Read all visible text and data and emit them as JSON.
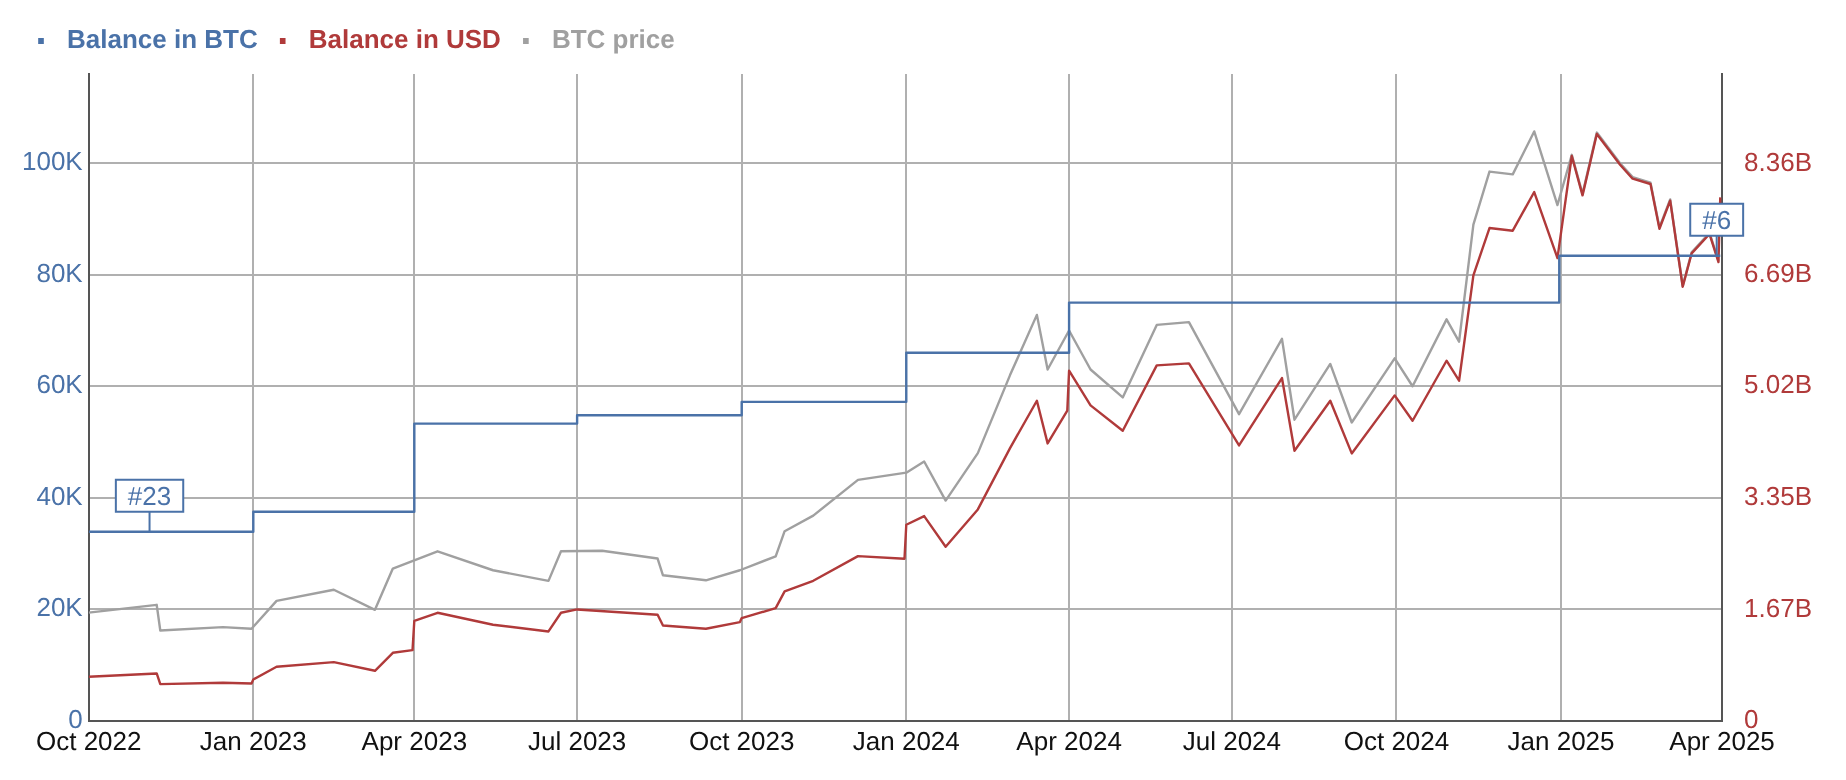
{
  "chart_data": {
    "type": "line",
    "series": [
      {
        "name": "Balance in BTC",
        "type": "step",
        "color": "#4a72a8",
        "x": [
          "2022-10-01",
          "2023-01-01",
          "2023-04-01",
          "2023-07-01",
          "2023-10-01",
          "2024-01-01",
          "2024-04-01",
          "2024-12-31",
          "2025-03-31"
        ],
        "values": [
          33900,
          37500,
          53300,
          54800,
          57200,
          66000,
          75000,
          83400,
          83400
        ]
      },
      {
        "name": "Balance in USD",
        "color": "#b03a3a",
        "axis": "y2",
        "x": [
          "2022-10-01",
          "2022-11-08",
          "2022-11-10",
          "2022-12-15",
          "2022-12-31",
          "2023-01-01",
          "2023-01-14",
          "2023-02-15",
          "2023-03-10",
          "2023-03-20",
          "2023-03-31",
          "2023-04-01",
          "2023-04-14",
          "2023-05-15",
          "2023-06-15",
          "2023-06-22",
          "2023-07-01",
          "2023-08-15",
          "2023-08-18",
          "2023-09-11",
          "2023-09-30",
          "2023-10-01",
          "2023-10-20",
          "2023-10-25",
          "2023-11-10",
          "2023-12-05",
          "2023-12-31",
          "2024-01-01",
          "2024-01-11",
          "2024-01-23",
          "2024-02-10",
          "2024-02-28",
          "2024-03-14",
          "2024-03-20",
          "2024-03-31",
          "2024-04-01",
          "2024-04-13",
          "2024-05-01",
          "2024-05-20",
          "2024-06-07",
          "2024-07-05",
          "2024-07-29",
          "2024-08-05",
          "2024-08-25",
          "2024-09-06",
          "2024-09-30",
          "2024-10-10",
          "2024-10-29",
          "2024-11-05",
          "2024-11-13",
          "2024-11-22",
          "2024-12-05",
          "2024-12-17",
          "2024-12-30",
          "2025-01-07",
          "2025-01-13",
          "2025-01-21",
          "2025-02-03",
          "2025-02-10",
          "2025-02-20",
          "2025-02-25",
          "2025-03-03",
          "2025-03-10",
          "2025-03-15",
          "2025-03-25",
          "2025-03-30",
          "2025-03-31"
        ],
        "values": [
          660000000.0,
          710000000.0,
          550000000.0,
          570000000.0,
          560000000.0,
          620000000.0,
          810000000.0,
          880000000.0,
          750000000.0,
          1020000000.0,
          1060000000.0,
          1500000000.0,
          1620000000.0,
          1440000000.0,
          1340000000.0,
          1620000000.0,
          1670000000.0,
          1590000000.0,
          1430000000.0,
          1380000000.0,
          1480000000.0,
          1540000000.0,
          1690000000.0,
          1940000000.0,
          2100000000.0,
          2470000000.0,
          2430000000.0,
          2940000000.0,
          3070000000.0,
          2610000000.0,
          3170000000.0,
          4090000000.0,
          4800000000.0,
          4160000000.0,
          4650000000.0,
          5250000000.0,
          4730000000.0,
          4350000000.0,
          5330000000.0,
          5360000000.0,
          4130000000.0,
          5140000000.0,
          4050000000.0,
          4800000000.0,
          4010000000.0,
          4880000000.0,
          4500000000.0,
          5400000000.0,
          5100000000.0,
          6680000000.0,
          7390000000.0,
          7350000000.0,
          7930000000.0,
          6940000000.0,
          8470000000.0,
          7880000000.0,
          8800000000.0,
          8340000000.0,
          8130000000.0,
          8050000000.0,
          7380000000.0,
          7800000000.0,
          6510000000.0,
          7010000000.0,
          7300000000.0,
          6880000000.0,
          7850000000.0
        ]
      },
      {
        "name": "BTC price",
        "color": "#a0a0a0",
        "x": [
          "2022-10-01",
          "2022-11-08",
          "2022-11-10",
          "2022-12-15",
          "2022-12-31",
          "2023-01-14",
          "2023-02-15",
          "2023-03-10",
          "2023-03-20",
          "2023-04-14",
          "2023-05-15",
          "2023-06-15",
          "2023-06-22",
          "2023-07-15",
          "2023-08-15",
          "2023-08-18",
          "2023-09-11",
          "2023-09-30",
          "2023-10-20",
          "2023-10-25",
          "2023-11-10",
          "2023-12-05",
          "2024-01-01",
          "2024-01-11",
          "2024-01-23",
          "2024-02-10",
          "2024-02-28",
          "2024-03-14",
          "2024-03-20",
          "2024-04-01",
          "2024-04-13",
          "2024-05-01",
          "2024-05-20",
          "2024-06-07",
          "2024-07-05",
          "2024-07-29",
          "2024-08-05",
          "2024-08-25",
          "2024-09-06",
          "2024-09-30",
          "2024-10-10",
          "2024-10-29",
          "2024-11-05",
          "2024-11-13",
          "2024-11-22",
          "2024-12-05",
          "2024-12-17",
          "2024-12-30",
          "2025-01-07",
          "2025-01-13",
          "2025-01-21",
          "2025-02-03",
          "2025-02-10",
          "2025-02-20",
          "2025-02-25",
          "2025-03-03",
          "2025-03-10",
          "2025-03-15",
          "2025-03-25",
          "2025-03-30"
        ],
        "values": [
          19400,
          20800,
          16200,
          16800,
          16500,
          21500,
          23500,
          19900,
          27300,
          30400,
          27000,
          25100,
          30400,
          30500,
          29100,
          26100,
          25200,
          27000,
          29500,
          34000,
          36800,
          43200,
          44500,
          46500,
          39500,
          48000,
          62000,
          72800,
          63000,
          70000,
          63000,
          58000,
          71000,
          71500,
          55000,
          68500,
          54000,
          64000,
          53500,
          65000,
          60000,
          72000,
          68000,
          89000,
          98500,
          98000,
          105700,
          92500,
          101500,
          94500,
          105500,
          100000,
          97500,
          96500,
          88500,
          93500,
          78000,
          84000,
          87500,
          82500
        ]
      }
    ],
    "xlim": [
      "2022-10-01",
      "2025-04-01"
    ],
    "xticks": [
      {
        "value": "2022-10-01",
        "label": "Oct 2022"
      },
      {
        "value": "2023-01-01",
        "label": "Jan 2023"
      },
      {
        "value": "2023-04-01",
        "label": "Apr 2023"
      },
      {
        "value": "2023-07-01",
        "label": "Jul 2023"
      },
      {
        "value": "2023-10-01",
        "label": "Oct 2023"
      },
      {
        "value": "2024-01-01",
        "label": "Jan 2024"
      },
      {
        "value": "2024-04-01",
        "label": "Apr 2024"
      },
      {
        "value": "2024-07-01",
        "label": "Jul 2024"
      },
      {
        "value": "2024-10-01",
        "label": "Oct 2024"
      },
      {
        "value": "2025-01-01",
        "label": "Jan 2025"
      },
      {
        "value": "2025-04-01",
        "label": "Apr 2025"
      }
    ],
    "ylim": [
      0,
      116000
    ],
    "yticks": [
      0,
      {
        "value": 20000,
        "label": "20K"
      },
      {
        "value": 40000,
        "label": "40K"
      },
      {
        "value": 60000,
        "label": "60K"
      },
      {
        "value": 80000,
        "label": "80K"
      },
      {
        "value": 100000,
        "label": "100K"
      }
    ],
    "y2lim": [
      0,
      9700000000.0
    ],
    "y2ticks": [
      0,
      {
        "value": 1670000000.0,
        "label": "1.67B"
      },
      {
        "value": 3350000000.0,
        "label": "3.35B"
      },
      {
        "value": 5020000000.0,
        "label": "5.02B"
      },
      {
        "value": 6690000000.0,
        "label": "6.69B"
      },
      {
        "value": 8360000000.0,
        "label": "8.36B"
      }
    ],
    "annotations": [
      {
        "text": "#23",
        "x": "2022-11-04",
        "y": 33900
      },
      {
        "text": "#6",
        "x": "2025-03-29",
        "y": 83400
      }
    ],
    "grid": true,
    "legend": "top left",
    "marker": "none",
    "line_style": "solid"
  }
}
